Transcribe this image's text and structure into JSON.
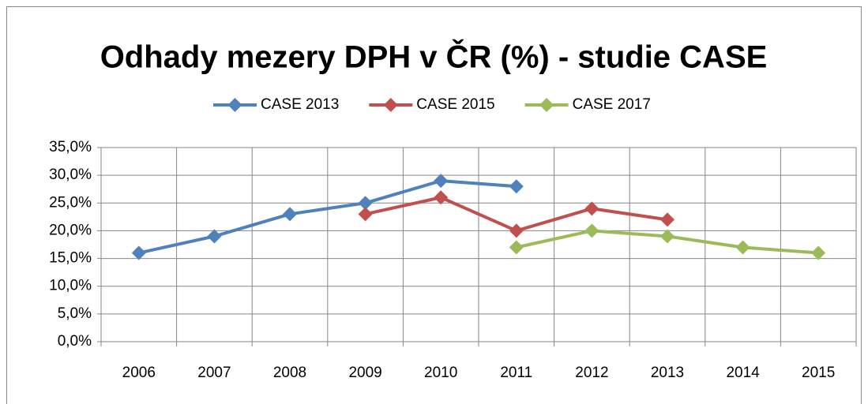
{
  "chart_data": {
    "type": "line",
    "title": "Odhady mezery DPH v ČR (%) - studie CASE",
    "categories": [
      "2006",
      "2007",
      "2008",
      "2009",
      "2010",
      "2011",
      "2012",
      "2013",
      "2014",
      "2015"
    ],
    "series": [
      {
        "name": "CASE 2013",
        "color": "#4f81bd",
        "values": [
          16,
          19,
          23,
          25,
          29,
          28,
          null,
          null,
          null,
          null
        ]
      },
      {
        "name": "CASE 2015",
        "color": "#c0504d",
        "values": [
          null,
          null,
          null,
          23,
          26,
          20,
          24,
          22,
          null,
          null
        ]
      },
      {
        "name": "CASE 2017",
        "color": "#9bbb59",
        "values": [
          null,
          null,
          null,
          null,
          null,
          17,
          20,
          19,
          17,
          16
        ]
      }
    ],
    "ylim": [
      0,
      35
    ],
    "yticks": [
      {
        "value": 0,
        "label": "0,0%"
      },
      {
        "value": 5,
        "label": "5,0%"
      },
      {
        "value": 10,
        "label": "10,0%"
      },
      {
        "value": 15,
        "label": "15,0%"
      },
      {
        "value": 20,
        "label": "20,0%"
      },
      {
        "value": 25,
        "label": "25,0%"
      },
      {
        "value": 30,
        "label": "30,0%"
      },
      {
        "value": 35,
        "label": "35,0%"
      }
    ],
    "grid": true,
    "legend": "top"
  }
}
